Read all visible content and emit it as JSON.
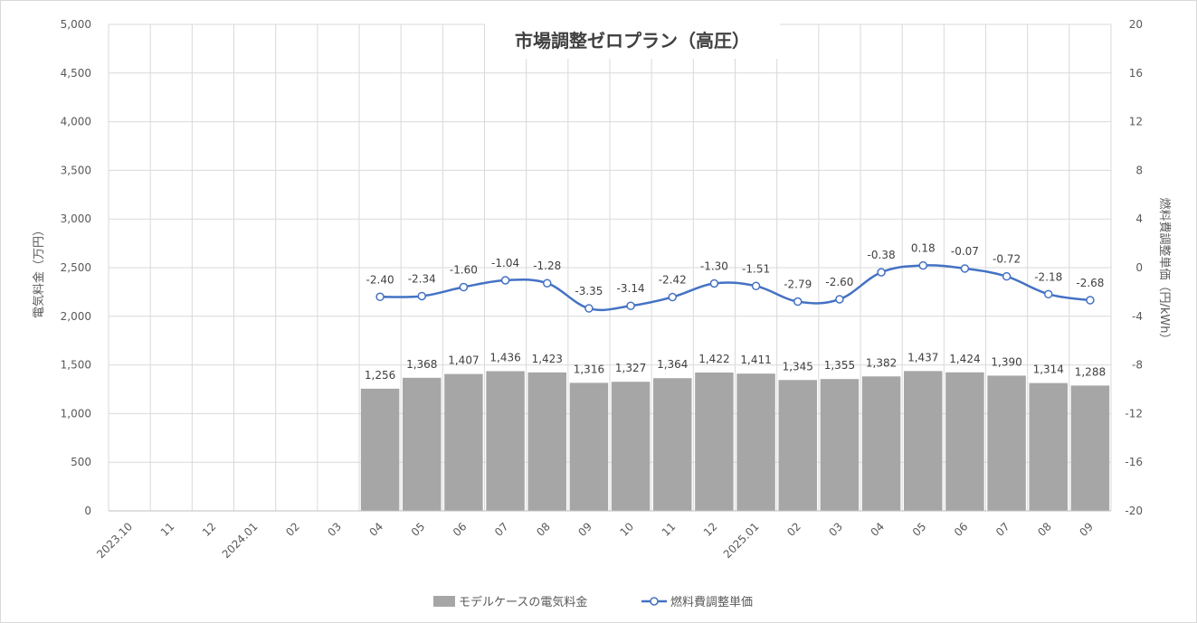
{
  "chart_data": {
    "type": "bar",
    "title": "市場調整ゼロプラン（高圧）",
    "categories": [
      "2023.10",
      "11",
      "12",
      "2024.01",
      "02",
      "03",
      "04",
      "05",
      "06",
      "07",
      "08",
      "09",
      "10",
      "11",
      "12",
      "2025.01",
      "02",
      "03",
      "04",
      "05",
      "06",
      "07",
      "08",
      "09"
    ],
    "y_left": {
      "label": "電気料金（万円）",
      "min": 0,
      "max": 5000,
      "step": 500,
      "ticks": [
        "0",
        "500",
        "1,000",
        "1,500",
        "2,000",
        "2,500",
        "3,000",
        "3,500",
        "4,000",
        "4,500",
        "5,000"
      ]
    },
    "y_right": {
      "label": "燃料費調整単価（円/kWh）",
      "min": -20,
      "max": 20,
      "step": 4,
      "ticks": [
        "-20",
        "-16",
        "-12",
        "-8",
        "-4",
        "0",
        "4",
        "8",
        "12",
        "16",
        "20"
      ]
    },
    "series": [
      {
        "name": "モデルケースの電気料金",
        "type": "bar",
        "axis": "left",
        "color": "#a6a6a6",
        "values": [
          null,
          null,
          null,
          null,
          null,
          null,
          1256,
          1368,
          1407,
          1436,
          1423,
          1316,
          1327,
          1364,
          1422,
          1411,
          1345,
          1355,
          1382,
          1437,
          1424,
          1390,
          1314,
          1288
        ],
        "labels": [
          "",
          "",
          "",
          "",
          "",
          "",
          "1,256",
          "1,368",
          "1,407",
          "1,436",
          "1,423",
          "1,316",
          "1,327",
          "1,364",
          "1,422",
          "1,411",
          "1,345",
          "1,355",
          "1,382",
          "1,437",
          "1,424",
          "1,390",
          "1,314",
          "1,288"
        ]
      },
      {
        "name": "燃料費調整単価",
        "type": "line",
        "axis": "right",
        "color": "#4472c4",
        "values": [
          null,
          null,
          null,
          null,
          null,
          null,
          -2.4,
          -2.34,
          -1.6,
          -1.04,
          -1.28,
          -3.35,
          -3.14,
          -2.42,
          -1.3,
          -1.51,
          -2.79,
          -2.6,
          -0.38,
          0.18,
          -0.07,
          -0.72,
          -2.18,
          -2.68
        ],
        "labels": [
          "",
          "",
          "",
          "",
          "",
          "",
          "-2.40",
          "-2.34",
          "-1.60",
          "-1.04",
          "-1.28",
          "-3.35",
          "-3.14",
          "-2.42",
          "-1.30",
          "-1.51",
          "-2.79",
          "-2.60",
          "-0.38",
          "0.18",
          "-0.07",
          "-0.72",
          "-2.18",
          "-2.68"
        ]
      }
    ],
    "grid": true,
    "legend_position": "bottom"
  }
}
